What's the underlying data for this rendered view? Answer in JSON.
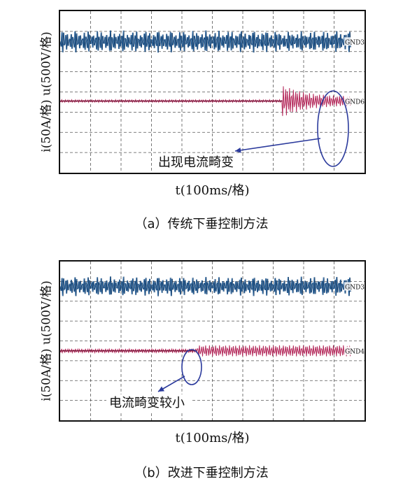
{
  "colors": {
    "voltage": "#1f5f9e",
    "current": "#b4285a",
    "annotation": "#2b3a9c",
    "grid": "#555555"
  },
  "chart_data": [
    {
      "type": "line",
      "panel": "a",
      "caption": "（a）传统下垂控制方法",
      "ylabel": "i(50A/格)  u(500V/格)",
      "xlabel": "t(100ms/格)",
      "grid": true,
      "grid_divisions": {
        "x": 10,
        "y": 8
      },
      "channel_labels": [
        "GND3",
        "GND6"
      ],
      "annotation": "出现电流畸变",
      "event_division": 7.3,
      "series": [
        {
          "channel": "GND3",
          "quantity": "u",
          "center_div": 1.5,
          "amplitude_div": 0.55,
          "sag_after_event": 0.12
        },
        {
          "channel": "GND6",
          "quantity": "i",
          "center_div": 4.45,
          "amplitude_div": 0.02,
          "spike_amplitude_div": 0.8,
          "settled_amplitude_div": 0.2
        }
      ]
    },
    {
      "type": "line",
      "panel": "b",
      "caption": "（b）改进下垂控制方法",
      "ylabel": "i(50A/格)  u(500V/格)",
      "xlabel": "t(100ms/格)",
      "grid": true,
      "grid_divisions": {
        "x": 10,
        "y": 8
      },
      "channel_labels": [
        "GND3",
        "GND4"
      ],
      "annotation": "电流畸变较小",
      "event_division": 4.5,
      "series": [
        {
          "channel": "GND3",
          "quantity": "u",
          "center_div": 1.25,
          "amplitude_div": 0.5,
          "sag_after_event": 0.08
        },
        {
          "channel": "GND4",
          "quantity": "i",
          "center_div": 4.5,
          "amplitude_div": 0.06,
          "settled_amplitude_div": 0.28
        }
      ]
    }
  ]
}
